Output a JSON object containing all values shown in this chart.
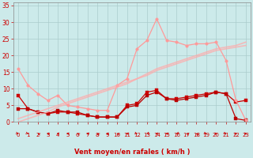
{
  "background_color": "#cceaea",
  "grid_color": "#aacccc",
  "ylim": [
    0,
    36
  ],
  "yticks": [
    0,
    5,
    10,
    15,
    20,
    25,
    30,
    35
  ],
  "xlabel": "Vent moyen/en rafales ( km/h )",
  "series": [
    {
      "color": "#cc0000",
      "alpha": 1.0,
      "linewidth": 0.9,
      "marker": "s",
      "markersize": 2.5,
      "values": [
        8,
        4,
        3,
        2.5,
        3,
        3,
        2.5,
        2,
        1.5,
        1.5,
        1.5,
        5,
        5.5,
        9,
        9.5,
        7,
        7,
        7.5,
        8,
        8.5,
        9,
        8.5,
        6,
        6.5
      ]
    },
    {
      "color": "#bb0000",
      "alpha": 1.0,
      "linewidth": 0.9,
      "marker": "s",
      "markersize": 2.5,
      "values": [
        4,
        4,
        3,
        2.5,
        3.5,
        3,
        3,
        2,
        1.5,
        1.5,
        1.5,
        4.5,
        5,
        8,
        9,
        7,
        6.5,
        7,
        7.5,
        8,
        9,
        8.5,
        1,
        0.5
      ]
    },
    {
      "color": "#ff9999",
      "alpha": 1.0,
      "linewidth": 0.9,
      "marker": "o",
      "markersize": 2.5,
      "values": [
        16,
        11,
        8.5,
        6.5,
        8,
        5,
        4.5,
        4,
        3.5,
        3.5,
        11,
        13,
        22,
        24.5,
        31,
        24.5,
        24,
        23,
        23.5,
        23.5,
        24,
        18.5,
        6.5,
        0.5
      ]
    },
    {
      "color": "#ffaaaa",
      "alpha": 0.75,
      "linewidth": 1.2,
      "marker": null,
      "values": [
        1,
        2,
        3,
        4,
        5,
        6,
        7,
        8,
        9,
        10,
        11,
        12,
        13,
        14.5,
        16,
        17,
        18,
        19,
        20,
        21,
        22,
        22.5,
        23,
        24
      ]
    },
    {
      "color": "#ffaaaa",
      "alpha": 0.75,
      "linewidth": 1.2,
      "marker": null,
      "values": [
        0,
        1,
        2,
        3,
        4.5,
        5.5,
        6.5,
        7.5,
        8.5,
        9.5,
        10.5,
        11.5,
        13,
        14,
        15.5,
        16.5,
        17.5,
        18.5,
        19.5,
        20.5,
        21.5,
        22,
        22.5,
        23
      ]
    }
  ],
  "wind_directions": [
    45,
    45,
    225,
    270,
    270,
    270,
    225,
    270,
    225,
    270,
    225,
    270,
    45,
    315,
    270,
    270,
    315,
    225,
    225,
    45,
    90,
    45,
    90,
    90
  ]
}
